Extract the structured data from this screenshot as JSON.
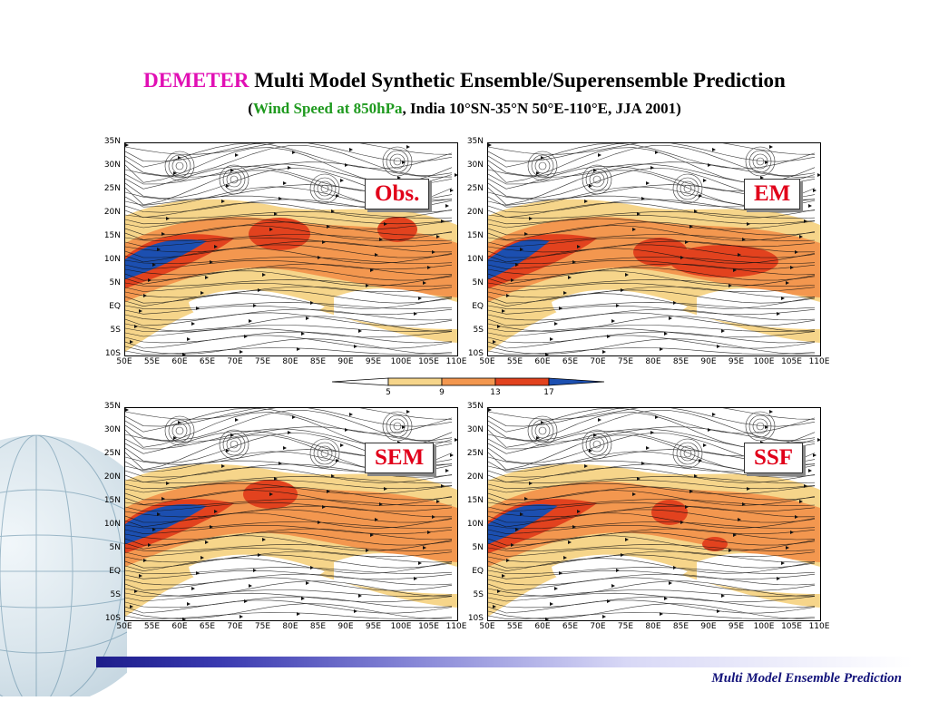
{
  "header": {
    "title_accent": "DEMETER",
    "title_rest": " Multi Model Synthetic Ensemble/Superensemble Prediction",
    "subtitle_open": "(",
    "subtitle_green": "Wind Speed at 850hPa",
    "subtitle_rest": ", India 10°SN-35°N 50°E-110°E, JJA  2001)"
  },
  "panels": [
    {
      "label": "Obs."
    },
    {
      "label": "EM"
    },
    {
      "label": "SEM"
    },
    {
      "label": "SSF"
    }
  ],
  "lat_labels": [
    "35N",
    "30N",
    "25N",
    "20N",
    "15N",
    "10N",
    "5N",
    "EQ",
    "5S",
    "10S"
  ],
  "lon_labels": [
    "50E",
    "55E",
    "60E",
    "65E",
    "70E",
    "75E",
    "80E",
    "85E",
    "90E",
    "95E",
    "100E",
    "105E",
    "110E"
  ],
  "colorbar": {
    "ticks": [
      "5",
      "9",
      "13",
      "17"
    ],
    "colors": [
      "#ffffff",
      "#f6d58a",
      "#f3974f",
      "#e2421e",
      "#1c4fb0"
    ]
  },
  "footer": {
    "text": "Multi Model Ensemble Prediction"
  }
}
